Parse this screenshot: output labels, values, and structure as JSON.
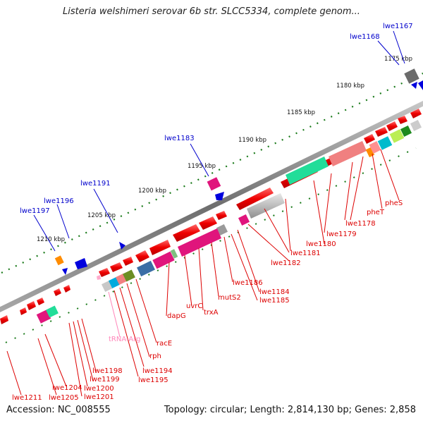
{
  "title": "Listeria welshimeri serovar 6b str. SLCC5334, complete genom...",
  "footer": {
    "accession": "Accession: NC_008555",
    "stats": "Topology: circular; Length: 2,814,130 bp; Genes: 2,858"
  },
  "kbp_labels": [
    "1175 kbp",
    "1180 kbp",
    "1185 kbp",
    "1190 kbp",
    "1195 kbp",
    "1200 kbp",
    "1205 kbp",
    "1210 kbp"
  ],
  "labels_top": [
    "lwe1167",
    "lwe1168",
    "lwe1183",
    "lwe1191",
    "lwe1196",
    "lwe1197"
  ],
  "labels_bottom": [
    "pheS",
    "pheT",
    "lwe1178",
    "lwe1179",
    "lwe1180",
    "lwe1181",
    "lwe1182",
    "lwe1184",
    "lwe1185",
    "lwe1186",
    "mutS2",
    "trxA",
    "uvrC",
    "dapG",
    "racE",
    "rph",
    "tRNA-Arg",
    "lwe1194",
    "lwe1195",
    "lwe1198",
    "lwe1199",
    "lwe1200",
    "lwe1201",
    "lwe1204",
    "lwe1205",
    "lwe1211"
  ],
  "colors": {
    "top_label": "#0000cc",
    "bottom_label": "#dd0000",
    "trna_label": "#ff88bb",
    "backbone": "#8a8a8a",
    "scale_dots": "#1a7a1a"
  }
}
